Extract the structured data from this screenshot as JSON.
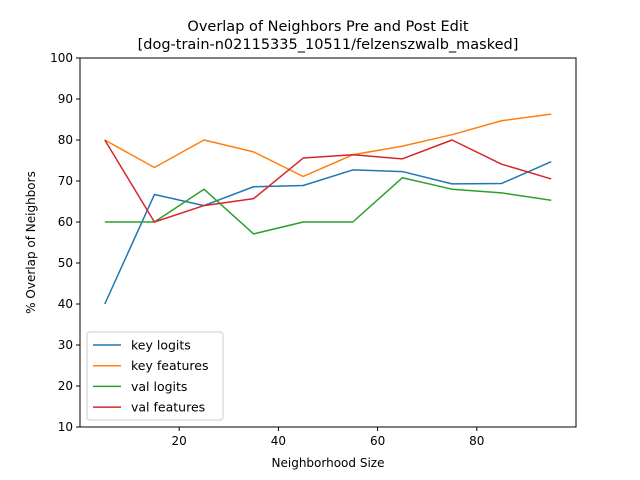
{
  "chart_data": {
    "type": "line",
    "title_line1": "Overlap of Neighbors Pre and Post Edit",
    "title_line2": "[dog-train-n02115335_10511/felzenszwalb_masked]",
    "xlabel": "Neighborhood Size",
    "ylabel": "% Overlap of Neighbors",
    "xlim": [
      0,
      100
    ],
    "ylim": [
      10,
      100
    ],
    "xticks": [
      20,
      40,
      60,
      80
    ],
    "yticks": [
      10,
      20,
      30,
      40,
      50,
      60,
      70,
      80,
      90,
      100
    ],
    "x": [
      5,
      15,
      25,
      35,
      45,
      55,
      65,
      75,
      85,
      95
    ],
    "grid": false,
    "legend_position": "lower-left",
    "series": [
      {
        "name": "key logits",
        "color": "#1f77b4",
        "values": [
          40.0,
          66.7,
          64.0,
          68.6,
          68.9,
          72.7,
          72.3,
          69.3,
          69.4,
          74.7
        ]
      },
      {
        "name": "key features",
        "color": "#ff7f0e",
        "values": [
          80.0,
          73.3,
          80.0,
          77.1,
          71.1,
          76.4,
          78.5,
          81.3,
          84.7,
          86.3
        ]
      },
      {
        "name": "val logits",
        "color": "#2ca02c",
        "values": [
          60.0,
          60.0,
          68.0,
          57.1,
          60.0,
          60.0,
          70.8,
          68.0,
          67.1,
          65.3
        ]
      },
      {
        "name": "val features",
        "color": "#d62728",
        "values": [
          80.0,
          60.0,
          64.0,
          65.7,
          75.6,
          76.4,
          75.4,
          80.0,
          74.1,
          70.5
        ]
      }
    ]
  }
}
